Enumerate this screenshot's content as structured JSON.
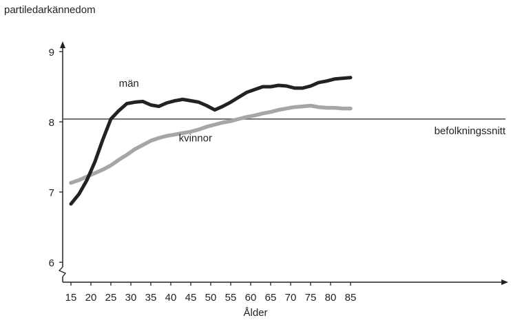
{
  "chart_data": {
    "type": "line",
    "title": "",
    "ylabel": "partiledarkännedom",
    "xlabel": "Ålder",
    "xlim": [
      15,
      85
    ],
    "ylim": [
      6,
      9
    ],
    "y_axis_break": true,
    "xticks": [
      15,
      20,
      25,
      30,
      35,
      40,
      45,
      50,
      55,
      60,
      65,
      70,
      75,
      80,
      85
    ],
    "yticks": [
      6,
      7,
      8,
      9
    ],
    "x": [
      15,
      17,
      19,
      21,
      23,
      25,
      27,
      29,
      31,
      33,
      35,
      37,
      39,
      41,
      43,
      45,
      47,
      49,
      51,
      53,
      55,
      57,
      59,
      61,
      63,
      65,
      67,
      69,
      71,
      73,
      75,
      77,
      79,
      81,
      83,
      85
    ],
    "series": [
      {
        "name": "män",
        "color": "#222222",
        "values": [
          6.83,
          6.97,
          7.17,
          7.43,
          7.75,
          8.04,
          8.16,
          8.26,
          8.28,
          8.29,
          8.24,
          8.22,
          8.27,
          8.3,
          8.32,
          8.3,
          8.28,
          8.23,
          8.17,
          8.22,
          8.28,
          8.35,
          8.42,
          8.46,
          8.5,
          8.5,
          8.52,
          8.51,
          8.48,
          8.48,
          8.51,
          8.56,
          8.58,
          8.61,
          8.62,
          8.63
        ]
      },
      {
        "name": "kvinnor",
        "color": "#a6a6a6",
        "values": [
          7.13,
          7.17,
          7.22,
          7.27,
          7.32,
          7.38,
          7.46,
          7.53,
          7.61,
          7.67,
          7.73,
          7.77,
          7.8,
          7.82,
          7.84,
          7.86,
          7.89,
          7.93,
          7.96,
          7.99,
          8.01,
          8.04,
          8.07,
          8.09,
          8.12,
          8.14,
          8.17,
          8.19,
          8.21,
          8.22,
          8.23,
          8.21,
          8.2,
          8.2,
          8.19,
          8.19
        ]
      }
    ],
    "reference_line": {
      "label": "befolkningssnitt",
      "value": 8.04
    },
    "annotations": [
      {
        "text": "män",
        "x": 27,
        "y": 8.5
      },
      {
        "text": "kvinnor",
        "x": 42,
        "y": 7.72
      }
    ],
    "grid": false,
    "legend": "none"
  }
}
